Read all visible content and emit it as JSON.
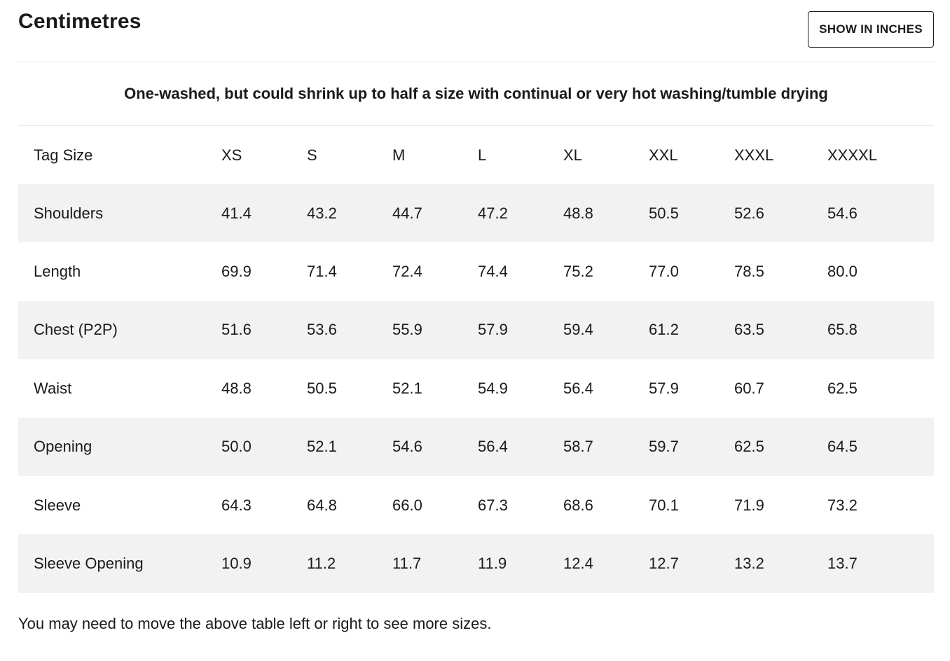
{
  "header": {
    "title": "Centimetres",
    "toggle_label": "SHOW IN INCHES"
  },
  "note": "One-washed, but could shrink up to half a size with continual or very hot washing/tumble drying",
  "table": {
    "header_label": "Tag Size",
    "sizes": [
      "XS",
      "S",
      "M",
      "L",
      "XL",
      "XXL",
      "XXXL",
      "XXXXL"
    ],
    "rows": [
      {
        "label": "Shoulders",
        "values": [
          "41.4",
          "43.2",
          "44.7",
          "47.2",
          "48.8",
          "50.5",
          "52.6",
          "54.6"
        ]
      },
      {
        "label": "Length",
        "values": [
          "69.9",
          "71.4",
          "72.4",
          "74.4",
          "75.2",
          "77.0",
          "78.5",
          "80.0"
        ]
      },
      {
        "label": "Chest (P2P)",
        "values": [
          "51.6",
          "53.6",
          "55.9",
          "57.9",
          "59.4",
          "61.2",
          "63.5",
          "65.8"
        ]
      },
      {
        "label": "Waist",
        "values": [
          "48.8",
          "50.5",
          "52.1",
          "54.9",
          "56.4",
          "57.9",
          "60.7",
          "62.5"
        ]
      },
      {
        "label": "Opening",
        "values": [
          "50.0",
          "52.1",
          "54.6",
          "56.4",
          "58.7",
          "59.7",
          "62.5",
          "64.5"
        ]
      },
      {
        "label": "Sleeve",
        "values": [
          "64.3",
          "64.8",
          "66.0",
          "67.3",
          "68.6",
          "70.1",
          "71.9",
          "73.2"
        ]
      },
      {
        "label": "Sleeve Opening",
        "values": [
          "10.9",
          "11.2",
          "11.7",
          "11.9",
          "12.4",
          "12.7",
          "13.2",
          "13.7"
        ]
      }
    ]
  },
  "footnote": "You may need to move the above table left or right to see more sizes."
}
